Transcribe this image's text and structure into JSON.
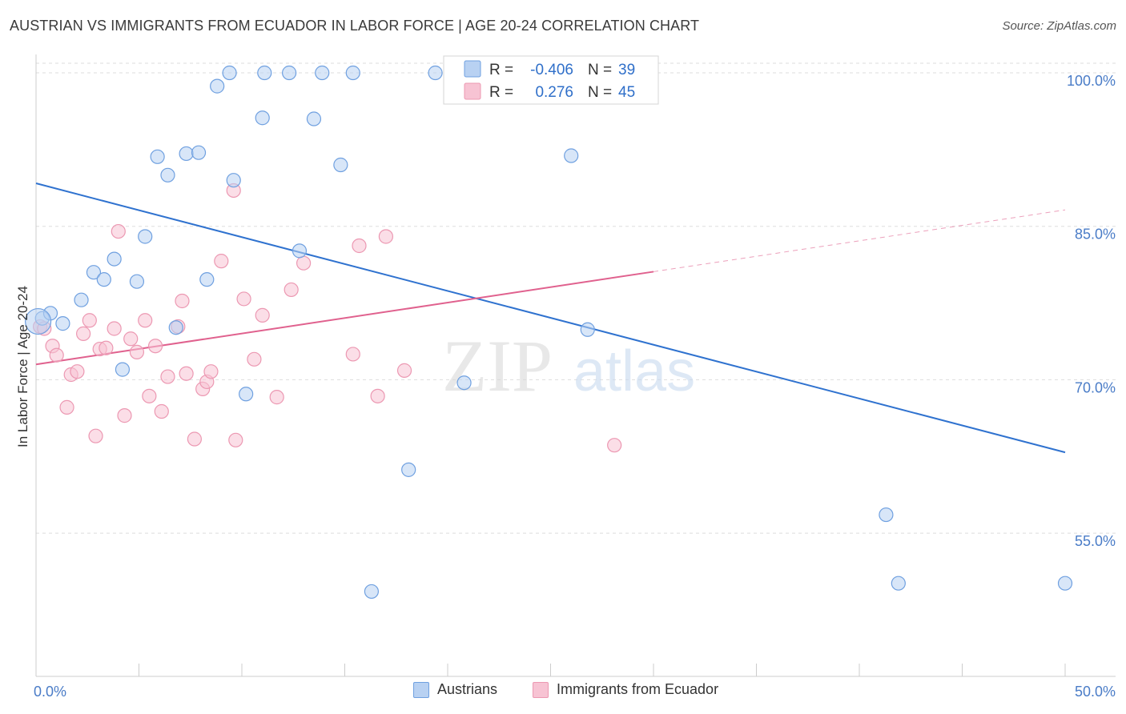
{
  "title": "AUSTRIAN VS IMMIGRANTS FROM ECUADOR IN LABOR FORCE | AGE 20-24 CORRELATION CHART",
  "source": "Source: ZipAtlas.com",
  "watermark": {
    "zip": "ZIP",
    "atlas": "atlas"
  },
  "colors": {
    "blue_fill": "#b8d1f2",
    "blue_stroke": "#6fa0e0",
    "blue_line": "#2f72cf",
    "pink_fill": "#f7c3d3",
    "pink_stroke": "#ec98b2",
    "pink_line": "#e0618e",
    "tick_text": "#4a7cc7",
    "grid": "#dddddd"
  },
  "legend": {
    "r_label": "R =",
    "n_label": "N =",
    "austrians_r": "-0.406",
    "austrians_n": "39",
    "ecuador_r": "0.276",
    "ecuador_n": "45"
  },
  "chart_data": {
    "type": "scatter",
    "title": "AUSTRIAN VS IMMIGRANTS FROM ECUADOR IN LABOR FORCE | AGE 20-24 CORRELATION CHART",
    "xlabel": "",
    "ylabel": "In Labor Force | Age 20-24",
    "xlim": [
      0,
      50
    ],
    "ylim": [
      41,
      101.8
    ],
    "x_tick_labels": [
      "0.0%",
      "50.0%"
    ],
    "y_ticks": [
      55,
      70,
      85,
      100
    ],
    "y_tick_labels": [
      "55.0%",
      "70.0%",
      "85.0%",
      "100.0%"
    ],
    "grid": true,
    "legend_position": "top-center",
    "series": [
      {
        "name": "Austrians",
        "color": "#6fa0e0",
        "r": -0.406,
        "n": 39,
        "points": [
          [
            0.3,
            76.0
          ],
          [
            0.7,
            76.5
          ],
          [
            1.3,
            75.5
          ],
          [
            2.2,
            77.8
          ],
          [
            2.8,
            80.5
          ],
          [
            3.3,
            79.8
          ],
          [
            3.8,
            81.8
          ],
          [
            4.2,
            71.0
          ],
          [
            4.9,
            79.6
          ],
          [
            5.3,
            84.0
          ],
          [
            5.9,
            91.8
          ],
          [
            6.4,
            90.0
          ],
          [
            6.8,
            75.1
          ],
          [
            7.3,
            92.1
          ],
          [
            7.9,
            92.2
          ],
          [
            8.3,
            79.8
          ],
          [
            8.8,
            98.7
          ],
          [
            9.4,
            100.0
          ],
          [
            9.6,
            89.5
          ],
          [
            10.2,
            68.6
          ],
          [
            11.0,
            95.6
          ],
          [
            11.1,
            100.0
          ],
          [
            12.3,
            100.0
          ],
          [
            12.8,
            82.6
          ],
          [
            13.5,
            95.5
          ],
          [
            13.9,
            100.0
          ],
          [
            14.8,
            91.0
          ],
          [
            15.4,
            100.0
          ],
          [
            16.3,
            49.3
          ],
          [
            18.1,
            61.2
          ],
          [
            19.4,
            100.0
          ],
          [
            20.8,
            69.7
          ],
          [
            24.2,
            100.0
          ],
          [
            26.0,
            91.9
          ],
          [
            26.8,
            74.9
          ],
          [
            41.3,
            56.8
          ],
          [
            41.9,
            50.1
          ],
          [
            50.0,
            50.1
          ],
          [
            0.1,
            75.7
          ]
        ],
        "trend": {
          "x": [
            0,
            50
          ],
          "y": [
            89.2,
            62.9
          ],
          "dashed_after_x": null
        }
      },
      {
        "name": "Immigrants from Ecuador",
        "color": "#ec98b2",
        "r": 0.276,
        "n": 45,
        "points": [
          [
            0.2,
            75.2
          ],
          [
            0.4,
            75.0
          ],
          [
            0.8,
            73.3
          ],
          [
            1.0,
            72.4
          ],
          [
            1.5,
            67.3
          ],
          [
            1.7,
            70.5
          ],
          [
            2.0,
            70.8
          ],
          [
            2.3,
            74.5
          ],
          [
            2.6,
            75.8
          ],
          [
            2.9,
            64.5
          ],
          [
            3.1,
            73.0
          ],
          [
            3.4,
            73.1
          ],
          [
            3.8,
            75.0
          ],
          [
            4.0,
            84.5
          ],
          [
            4.3,
            66.5
          ],
          [
            4.6,
            74.0
          ],
          [
            4.9,
            72.7
          ],
          [
            5.3,
            75.8
          ],
          [
            5.5,
            68.4
          ],
          [
            5.8,
            73.3
          ],
          [
            6.1,
            66.9
          ],
          [
            6.4,
            70.3
          ],
          [
            6.9,
            75.2
          ],
          [
            7.1,
            77.7
          ],
          [
            7.3,
            70.6
          ],
          [
            7.7,
            64.2
          ],
          [
            8.1,
            69.1
          ],
          [
            8.3,
            69.8
          ],
          [
            8.5,
            70.8
          ],
          [
            9.0,
            81.6
          ],
          [
            9.6,
            88.5
          ],
          [
            9.7,
            64.1
          ],
          [
            10.1,
            77.9
          ],
          [
            10.6,
            72.0
          ],
          [
            11.0,
            76.3
          ],
          [
            11.7,
            68.3
          ],
          [
            12.4,
            78.8
          ],
          [
            13.0,
            81.4
          ],
          [
            15.4,
            72.5
          ],
          [
            15.7,
            83.1
          ],
          [
            16.6,
            68.4
          ],
          [
            17.0,
            84.0
          ],
          [
            17.9,
            70.9
          ],
          [
            26.5,
            100.0
          ],
          [
            28.1,
            63.6
          ]
        ],
        "trend": {
          "x": [
            0,
            50
          ],
          "y": [
            71.5,
            86.6
          ],
          "dashed_after_x": 30
        }
      }
    ]
  },
  "bottom_legend": {
    "austrians": "Austrians",
    "ecuador": "Immigrants from Ecuador"
  }
}
